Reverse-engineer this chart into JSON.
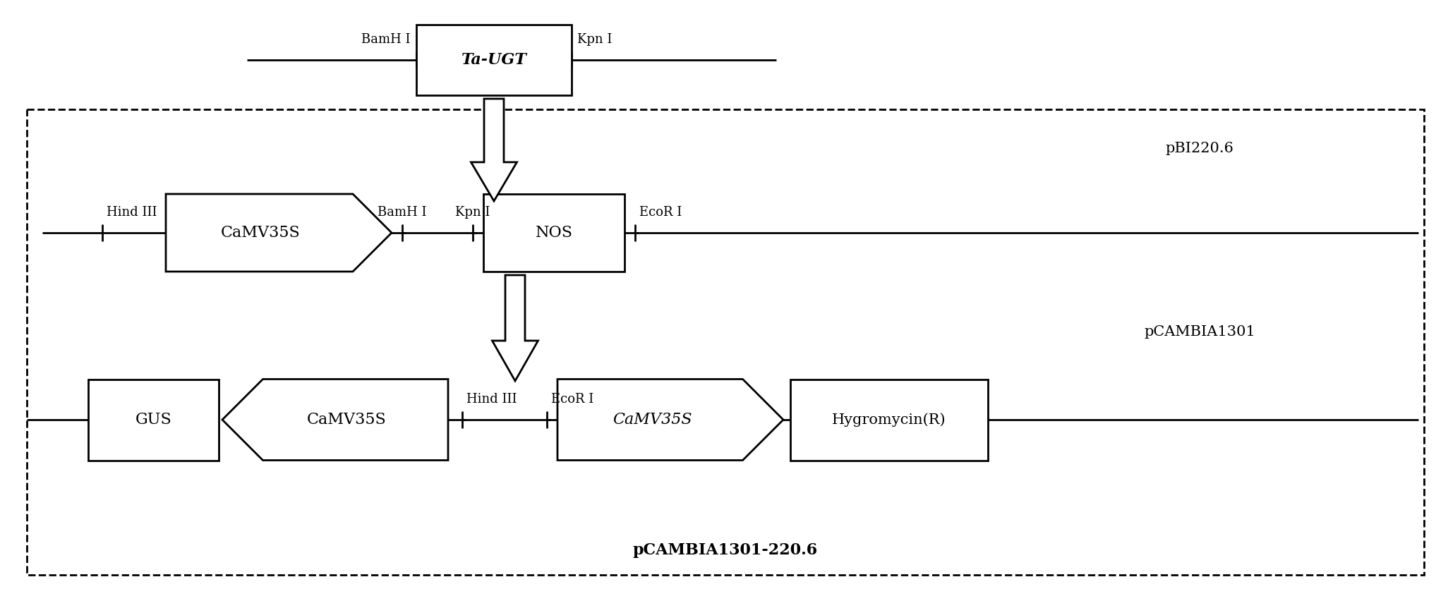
{
  "fig_width": 20.52,
  "fig_height": 8.52,
  "bg_color": "#ffffff",
  "title_pCAMBIA1301_220_6": "pCAMBIA1301-220.6",
  "title_pBI220_6": "pBI220.6",
  "title_pCAMBIA1301": "pCAMBIA1301",
  "label_Ta_UGT": "Ta-UGT",
  "label_CaMV35S_1": "CaMV35S",
  "label_NOS": "NOS",
  "label_GUS": "GUS",
  "label_CaMV35S_2": "CaMV35S",
  "label_CaMV35S_3": "CaMV35S",
  "label_Hygromycin": "Hygromycin(R)",
  "BamHI_top": "BamH I",
  "KpnI_top": "Kpn I",
  "HindIII_mid": "Hind III",
  "BamHI_mid": "BamH I",
  "KpnI_mid": "Kpn I",
  "EcoRI_mid": "EcoR I",
  "HindIII_bot": "Hind III",
  "EcoRI_bot": "EcoR I"
}
